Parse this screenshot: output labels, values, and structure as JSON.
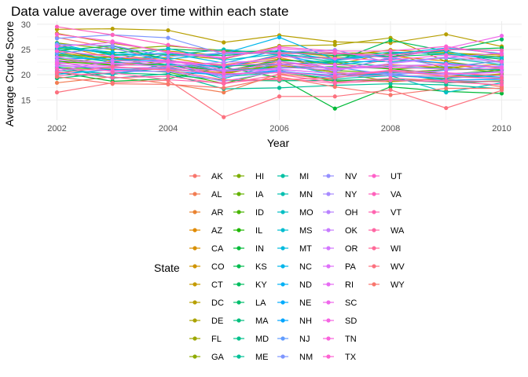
{
  "chart_data": {
    "type": "line",
    "title": "Data value average over time within each state",
    "xlabel": "Year",
    "ylabel": "Average Crude Score",
    "xlim": [
      2002,
      2010
    ],
    "ylim": [
      11.0,
      30.6
    ],
    "x_ticks": [
      2002,
      2004,
      2006,
      2008,
      2010
    ],
    "y_ticks": [
      15,
      20,
      25,
      30
    ],
    "x_tick_labels": [
      "2002",
      "2004",
      "2006",
      "2008",
      "2010"
    ],
    "y_tick_labels": [
      "15",
      "20",
      "25",
      "30"
    ],
    "grid": true,
    "legend_title": "State",
    "legend_position": "bottom",
    "x": [
      2002,
      2003,
      2004,
      2005,
      2006,
      2007,
      2008,
      2009,
      2010
    ],
    "series": [
      {
        "name": "AK",
        "color": "#F8766D",
        "values": [
          27.4,
          25.2,
          23.0,
          20.4,
          22.6,
          21.0,
          23.1,
          22.2,
          20.6
        ]
      },
      {
        "name": "AL",
        "color": "#F27D53",
        "values": [
          18.4,
          19.6,
          18.2,
          16.5,
          20.2,
          19.0,
          18.6,
          19.2,
          17.6
        ]
      },
      {
        "name": "AR",
        "color": "#EA8331",
        "values": [
          23.6,
          24.1,
          22.6,
          22.0,
          23.4,
          21.1,
          22.0,
          21.4,
          22.1
        ]
      },
      {
        "name": "AZ",
        "color": "#E18A00",
        "values": [
          25.9,
          23.3,
          22.9,
          21.3,
          24.0,
          23.3,
          23.7,
          22.7,
          23.7
        ]
      },
      {
        "name": "CA",
        "color": "#D89000",
        "values": [
          22.4,
          22.4,
          21.6,
          20.3,
          21.9,
          20.5,
          19.8,
          19.7,
          20.1
        ]
      },
      {
        "name": "CO",
        "color": "#CF9400",
        "values": [
          24.5,
          22.8,
          23.4,
          21.6,
          23.1,
          22.0,
          24.3,
          21.2,
          22.9
        ]
      },
      {
        "name": "CT",
        "color": "#C49A00",
        "values": [
          28.2,
          26.2,
          24.7,
          23.8,
          24.6,
          23.6,
          24.9,
          24.3,
          23.9
        ]
      },
      {
        "name": "DC",
        "color": "#B79F00",
        "values": [
          29.0,
          29.1,
          28.8,
          26.4,
          27.8,
          26.5,
          26.3,
          28.0,
          25.6
        ]
      },
      {
        "name": "DE",
        "color": "#ABA300",
        "values": [
          25.0,
          22.7,
          23.9,
          23.1,
          25.7,
          25.9,
          27.3,
          22.6,
          21.2
        ]
      },
      {
        "name": "FL",
        "color": "#9DA700",
        "values": [
          22.1,
          23.6,
          21.0,
          20.1,
          22.3,
          20.4,
          18.7,
          19.3,
          20.2
        ]
      },
      {
        "name": "GA",
        "color": "#8EAB00",
        "values": [
          26.3,
          25.0,
          25.7,
          24.8,
          24.3,
          24.3,
          24.3,
          24.4,
          23.5
        ]
      },
      {
        "name": "HI",
        "color": "#7CAE00",
        "values": [
          24.0,
          23.4,
          22.0,
          20.7,
          23.0,
          22.2,
          21.1,
          21.6,
          20.4
        ]
      },
      {
        "name": "IA",
        "color": "#64B200",
        "values": [
          23.2,
          22.0,
          21.8,
          20.8,
          21.6,
          20.8,
          20.4,
          21.0,
          21.1
        ]
      },
      {
        "name": "ID",
        "color": "#49B500",
        "values": [
          21.4,
          21.1,
          20.5,
          18.3,
          20.9,
          18.7,
          19.0,
          18.5,
          18.8
        ]
      },
      {
        "name": "IL",
        "color": "#1FB700",
        "values": [
          22.7,
          21.9,
          22.1,
          20.6,
          21.4,
          21.6,
          21.2,
          20.1,
          20.9
        ]
      },
      {
        "name": "IN",
        "color": "#00BA38",
        "values": [
          20.5,
          18.7,
          19.2,
          21.5,
          19.4,
          13.3,
          17.6,
          16.7,
          16.3
        ]
      },
      {
        "name": "KS",
        "color": "#00BB4E",
        "values": [
          25.3,
          24.3,
          25.1,
          24.6,
          24.7,
          24.1,
          23.6,
          24.9,
          25.3
        ]
      },
      {
        "name": "KY",
        "color": "#00BD5F",
        "values": [
          24.8,
          25.7,
          23.0,
          20.6,
          22.8,
          22.6,
          26.8,
          24.7,
          27.0
        ]
      },
      {
        "name": "LA",
        "color": "#00BE6C",
        "values": [
          25.8,
          24.0,
          24.0,
          23.8,
          24.6,
          23.8,
          23.6,
          24.1,
          23.1
        ]
      },
      {
        "name": "MA",
        "color": "#00BF7D",
        "values": [
          19.3,
          20.4,
          20.0,
          18.9,
          18.8,
          18.9,
          19.1,
          18.4,
          18.7
        ]
      },
      {
        "name": "MD",
        "color": "#00C08B",
        "values": [
          23.9,
          22.5,
          22.0,
          21.7,
          22.1,
          22.5,
          21.6,
          21.2,
          21.0
        ]
      },
      {
        "name": "ME",
        "color": "#00C097",
        "values": [
          21.6,
          19.3,
          20.2,
          17.2,
          17.4,
          17.9,
          18.2,
          18.0,
          17.2
        ]
      },
      {
        "name": "MI",
        "color": "#00C1A3",
        "values": [
          20.9,
          20.2,
          21.4,
          19.6,
          20.5,
          19.2,
          19.8,
          19.3,
          19.9
        ]
      },
      {
        "name": "MN",
        "color": "#00BFB0",
        "values": [
          24.3,
          22.5,
          23.9,
          25.0,
          24.0,
          22.6,
          22.6,
          23.3,
          22.0
        ]
      },
      {
        "name": "MO",
        "color": "#00BFC4",
        "values": [
          21.3,
          20.0,
          22.2,
          19.2,
          22.3,
          20.0,
          19.8,
          16.5,
          18.4
        ]
      },
      {
        "name": "MS",
        "color": "#00BDD0",
        "values": [
          25.1,
          22.9,
          25.2,
          22.9,
          24.1,
          23.1,
          24.5,
          24.1,
          23.4
        ]
      },
      {
        "name": "MT",
        "color": "#00BADE",
        "values": [
          26.2,
          23.8,
          24.3,
          22.3,
          24.9,
          22.8,
          24.0,
          24.7,
          22.5
        ]
      },
      {
        "name": "NC",
        "color": "#00B6EB",
        "values": [
          25.5,
          24.5,
          23.1,
          24.2,
          27.4,
          23.0,
          24.1,
          25.3,
          24.2
        ]
      },
      {
        "name": "ND",
        "color": "#00B1F5",
        "values": [
          20.1,
          21.0,
          21.3,
          19.9,
          20.8,
          19.5,
          20.6,
          20.1,
          19.5
        ]
      },
      {
        "name": "NE",
        "color": "#00ABFD",
        "values": [
          23.3,
          23.1,
          22.7,
          21.4,
          23.9,
          21.9,
          23.2,
          22.3,
          21.5
        ]
      },
      {
        "name": "NH",
        "color": "#00A5FF",
        "values": [
          22.0,
          20.9,
          20.6,
          20.0,
          20.6,
          19.9,
          20.2,
          18.9,
          19.1
        ]
      },
      {
        "name": "NJ",
        "color": "#619CFF",
        "values": [
          24.2,
          25.4,
          22.3,
          20.8,
          21.3,
          21.5,
          20.0,
          20.9,
          21.8
        ]
      },
      {
        "name": "NM",
        "color": "#7E96FF",
        "values": [
          27.2,
          27.9,
          27.3,
          24.1,
          24.3,
          20.6,
          23.5,
          21.6,
          22.7
        ]
      },
      {
        "name": "NV",
        "color": "#9590FF",
        "values": [
          26.0,
          25.8,
          23.6,
          24.3,
          24.4,
          24.9,
          22.4,
          23.5,
          22.4
        ]
      },
      {
        "name": "NY",
        "color": "#A88BFF",
        "values": [
          21.7,
          21.5,
          21.1,
          20.0,
          21.0,
          20.3,
          20.3,
          20.2,
          20.6
        ]
      },
      {
        "name": "OH",
        "color": "#B983FF",
        "values": [
          22.6,
          20.6,
          20.7,
          18.7,
          20.7,
          19.6,
          19.9,
          19.6,
          19.2
        ]
      },
      {
        "name": "OK",
        "color": "#C77CFF",
        "values": [
          23.5,
          22.1,
          21.7,
          22.5,
          22.7,
          21.3,
          21.8,
          22.0,
          21.6
        ]
      },
      {
        "name": "OR",
        "color": "#D376FF",
        "values": [
          20.7,
          22.8,
          22.5,
          19.5,
          21.5,
          20.9,
          22.2,
          23.4,
          24.3
        ]
      },
      {
        "name": "PA",
        "color": "#DE70F9",
        "values": [
          22.9,
          22.2,
          22.8,
          21.0,
          22.0,
          21.2,
          21.5,
          21.1,
          21.2
        ]
      },
      {
        "name": "RI",
        "color": "#E76BF3",
        "values": [
          21.9,
          21.3,
          21.5,
          20.7,
          21.1,
          20.2,
          20.7,
          20.0,
          20.5
        ]
      },
      {
        "name": "SC",
        "color": "#EF67EB",
        "values": [
          25.6,
          26.4,
          24.5,
          23.4,
          25.2,
          24.4,
          23.3,
          25.2,
          27.7
        ]
      },
      {
        "name": "SD",
        "color": "#F564E3",
        "values": [
          22.3,
          21.7,
          22.5,
          21.9,
          22.2,
          22.0,
          21.4,
          22.1,
          21.4
        ]
      },
      {
        "name": "TN",
        "color": "#FA62DB",
        "values": [
          24.7,
          23.6,
          22.8,
          21.8,
          23.6,
          23.2,
          22.9,
          23.9,
          22.6
        ]
      },
      {
        "name": "TX",
        "color": "#FD61D1",
        "values": [
          28.0,
          26.6,
          24.4,
          23.2,
          25.5,
          24.7,
          24.7,
          25.6,
          24.0
        ]
      },
      {
        "name": "UT",
        "color": "#FF61C9",
        "values": [
          21.2,
          20.8,
          21.2,
          20.2,
          20.4,
          19.8,
          20.9,
          20.4,
          19.8
        ]
      },
      {
        "name": "VA",
        "color": "#FF62BC",
        "values": [
          29.5,
          27.9,
          25.9,
          24.5,
          24.2,
          24.2,
          23.9,
          25.0,
          24.8
        ]
      },
      {
        "name": "VT",
        "color": "#FF64B0",
        "values": [
          19.8,
          20.4,
          19.0,
          18.4,
          19.3,
          18.3,
          18.9,
          18.6,
          18.0
        ]
      },
      {
        "name": "WA",
        "color": "#FF67A4",
        "values": [
          20.6,
          19.4,
          19.7,
          18.2,
          20.0,
          18.5,
          19.3,
          18.8,
          18.6
        ]
      },
      {
        "name": "WI",
        "color": "#FF6A98",
        "values": [
          20.3,
          21.6,
          20.9,
          19.0,
          19.0,
          19.4,
          20.8,
          19.7,
          19.3
        ]
      },
      {
        "name": "WV",
        "color": "#FC717F",
        "values": [
          16.5,
          18.4,
          18.9,
          11.6,
          15.7,
          15.7,
          17.0,
          13.4,
          16.9
        ]
      },
      {
        "name": "WY",
        "color": "#F8766D",
        "values": [
          19.6,
          18.2,
          18.1,
          17.4,
          19.6,
          17.6,
          16.0,
          17.3,
          17.3
        ]
      }
    ]
  }
}
